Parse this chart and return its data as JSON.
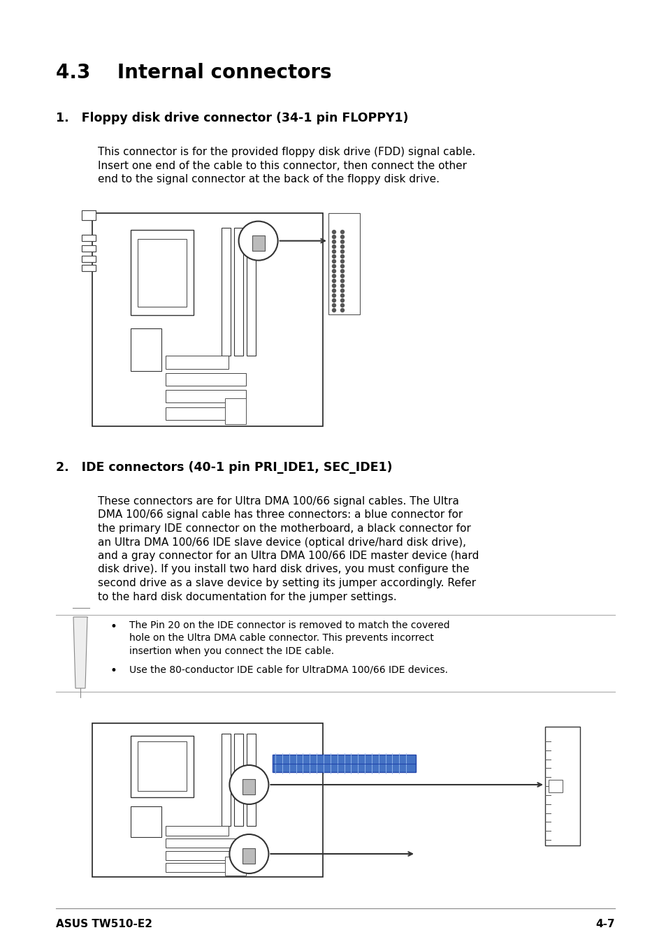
{
  "bg_color": "#ffffff",
  "text_color": "#000000",
  "blue_color": "#4472c4",
  "gray_color": "#888888",
  "section_title": "4.3    Internal connectors",
  "item1_title": "1.   Floppy disk drive connector (34-1 pin FLOPPY1)",
  "item1_body_lines": [
    "This connector is for the provided floppy disk drive (FDD) signal cable.",
    "Insert one end of the cable to this connector, then connect the other",
    "end to the signal connector at the back of the floppy disk drive."
  ],
  "item2_title": "2.   IDE connectors (40-1 pin PRI_IDE1, SEC_IDE1)",
  "item2_body_lines": [
    "These connectors are for Ultra DMA 100/66 signal cables. The Ultra",
    "DMA 100/66 signal cable has three connectors: a blue connector for",
    "the primary IDE connector on the motherboard, a black connector for",
    "an Ultra DMA 100/66 IDE slave device (optical drive/hard disk drive),",
    "and a gray connector for an Ultra DMA 100/66 IDE master device (hard",
    "disk drive). If you install two hard disk drives, you must configure the",
    "second drive as a slave device by setting its jumper accordingly. Refer",
    "to the hard disk documentation for the jumper settings."
  ],
  "note_bullet1_lines": [
    "The Pin 20 on the IDE connector is removed to match the covered",
    "hole on the Ultra DMA cable connector. This prevents incorrect",
    "insertion when you connect the IDE cable."
  ],
  "note_bullet2": "Use the 80-conductor IDE cable for UltraDMA 100/66 IDE devices.",
  "footer_left": "ASUS TW510-E2",
  "footer_right": "4-7"
}
